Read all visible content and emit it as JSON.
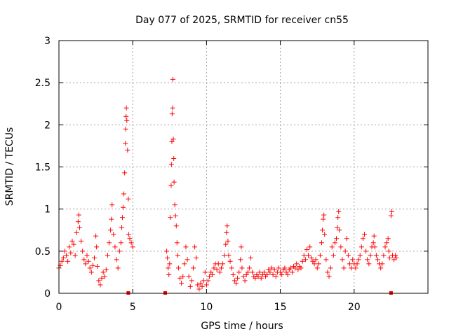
{
  "chart_data": {
    "type": "scatter",
    "title": "Day 077 of 2025, SRMTID for receiver cn55",
    "xlabel": "GPS time / hours",
    "ylabel": "SRMTID / TECUs",
    "xlim": [
      0,
      25
    ],
    "ylim": [
      0,
      3
    ],
    "x_ticks": [
      0,
      5,
      10,
      15,
      20
    ],
    "x_tick_labels": [
      "0",
      "5",
      "10",
      "15",
      "20"
    ],
    "y_ticks": [
      0,
      0.5,
      1,
      1.5,
      2,
      2.5,
      3
    ],
    "y_tick_labels": [
      "0",
      "0.5",
      "1",
      "1.5",
      "2",
      "2.5",
      "3"
    ],
    "grid": true,
    "marker": "plus",
    "series_color": "#ff0000",
    "series": [
      {
        "name": "SRMTID",
        "points": [
          [
            0.0,
            0.3
          ],
          [
            0.1,
            0.33
          ],
          [
            0.2,
            0.38
          ],
          [
            0.3,
            0.42
          ],
          [
            0.4,
            0.5
          ],
          [
            0.5,
            0.45
          ],
          [
            0.6,
            0.38
          ],
          [
            0.7,
            0.55
          ],
          [
            0.8,
            0.48
          ],
          [
            0.9,
            0.62
          ],
          [
            1.0,
            0.58
          ],
          [
            1.1,
            0.45
          ],
          [
            1.2,
            0.72
          ],
          [
            1.3,
            0.85
          ],
          [
            1.35,
            0.93
          ],
          [
            1.4,
            0.78
          ],
          [
            1.5,
            0.62
          ],
          [
            1.6,
            0.5
          ],
          [
            1.7,
            0.4
          ],
          [
            1.8,
            0.35
          ],
          [
            1.9,
            0.45
          ],
          [
            2.0,
            0.38
          ],
          [
            2.1,
            0.3
          ],
          [
            2.2,
            0.25
          ],
          [
            2.3,
            0.33
          ],
          [
            2.4,
            0.42
          ],
          [
            2.5,
            0.68
          ],
          [
            2.55,
            0.55
          ],
          [
            2.6,
            0.32
          ],
          [
            2.7,
            0.15
          ],
          [
            2.8,
            0.1
          ],
          [
            2.9,
            0.18
          ],
          [
            3.0,
            0.25
          ],
          [
            3.1,
            0.2
          ],
          [
            3.2,
            0.28
          ],
          [
            3.3,
            0.45
          ],
          [
            3.4,
            0.6
          ],
          [
            3.5,
            0.75
          ],
          [
            3.55,
            0.88
          ],
          [
            3.6,
            1.05
          ],
          [
            3.7,
            0.7
          ],
          [
            3.8,
            0.55
          ],
          [
            3.9,
            0.4
          ],
          [
            4.0,
            0.3
          ],
          [
            4.1,
            0.5
          ],
          [
            4.2,
            0.6
          ],
          [
            4.25,
            0.78
          ],
          [
            4.3,
            0.9
          ],
          [
            4.35,
            1.02
          ],
          [
            4.4,
            1.18
          ],
          [
            4.45,
            1.43
          ],
          [
            4.5,
            1.78
          ],
          [
            4.52,
            1.95
          ],
          [
            4.55,
            2.1
          ],
          [
            4.57,
            2.2
          ],
          [
            4.6,
            2.05
          ],
          [
            4.65,
            1.7
          ],
          [
            4.7,
            1.12
          ],
          [
            4.72,
            0.7
          ],
          [
            4.8,
            0.65
          ],
          [
            4.9,
            0.6
          ],
          [
            5.0,
            0.55
          ],
          [
            7.3,
            0.5
          ],
          [
            7.35,
            0.42
          ],
          [
            7.4,
            0.3
          ],
          [
            7.45,
            0.22
          ],
          [
            7.5,
            0.35
          ],
          [
            7.55,
            0.9
          ],
          [
            7.6,
            1.28
          ],
          [
            7.62,
            1.53
          ],
          [
            7.65,
            1.8
          ],
          [
            7.67,
            2.13
          ],
          [
            7.7,
            2.2
          ],
          [
            7.72,
            2.54
          ],
          [
            7.75,
            1.83
          ],
          [
            7.78,
            1.6
          ],
          [
            7.8,
            1.32
          ],
          [
            7.85,
            1.05
          ],
          [
            7.9,
            0.92
          ],
          [
            7.95,
            0.8
          ],
          [
            8.0,
            0.6
          ],
          [
            8.05,
            0.45
          ],
          [
            8.1,
            0.3
          ],
          [
            8.2,
            0.18
          ],
          [
            8.3,
            0.12
          ],
          [
            8.4,
            0.2
          ],
          [
            8.5,
            0.35
          ],
          [
            8.6,
            0.55
          ],
          [
            8.7,
            0.4
          ],
          [
            8.8,
            0.2
          ],
          [
            8.9,
            0.08
          ],
          [
            9.0,
            0.15
          ],
          [
            9.1,
            0.3
          ],
          [
            9.2,
            0.55
          ],
          [
            9.3,
            0.42
          ],
          [
            9.4,
            0.1
          ],
          [
            9.5,
            0.05
          ],
          [
            9.6,
            0.12
          ],
          [
            9.7,
            0.08
          ],
          [
            9.8,
            0.15
          ],
          [
            9.9,
            0.25
          ],
          [
            10.0,
            0.1
          ],
          [
            10.1,
            0.15
          ],
          [
            10.2,
            0.2
          ],
          [
            10.3,
            0.25
          ],
          [
            10.4,
            0.22
          ],
          [
            10.5,
            0.3
          ],
          [
            10.6,
            0.35
          ],
          [
            10.7,
            0.28
          ],
          [
            10.8,
            0.35
          ],
          [
            10.9,
            0.25
          ],
          [
            11.0,
            0.3
          ],
          [
            11.1,
            0.35
          ],
          [
            11.2,
            0.45
          ],
          [
            11.3,
            0.58
          ],
          [
            11.35,
            0.72
          ],
          [
            11.4,
            0.8
          ],
          [
            11.45,
            0.62
          ],
          [
            11.5,
            0.45
          ],
          [
            11.6,
            0.38
          ],
          [
            11.7,
            0.3
          ],
          [
            11.8,
            0.22
          ],
          [
            11.9,
            0.15
          ],
          [
            12.0,
            0.12
          ],
          [
            12.1,
            0.18
          ],
          [
            12.2,
            0.25
          ],
          [
            12.3,
            0.4
          ],
          [
            12.35,
            0.55
          ],
          [
            12.4,
            0.3
          ],
          [
            12.5,
            0.2
          ],
          [
            12.6,
            0.15
          ],
          [
            12.7,
            0.22
          ],
          [
            12.8,
            0.25
          ],
          [
            12.9,
            0.3
          ],
          [
            13.0,
            0.42
          ],
          [
            13.1,
            0.25
          ],
          [
            13.2,
            0.2
          ],
          [
            13.3,
            0.18
          ],
          [
            13.4,
            0.22
          ],
          [
            13.5,
            0.2
          ],
          [
            13.6,
            0.25
          ],
          [
            13.7,
            0.18
          ],
          [
            13.8,
            0.22
          ],
          [
            13.9,
            0.25
          ],
          [
            14.0,
            0.2
          ],
          [
            14.1,
            0.22
          ],
          [
            14.2,
            0.28
          ],
          [
            14.3,
            0.25
          ],
          [
            14.4,
            0.3
          ],
          [
            14.5,
            0.22
          ],
          [
            14.6,
            0.28
          ],
          [
            14.7,
            0.2
          ],
          [
            14.8,
            0.25
          ],
          [
            14.9,
            0.3
          ],
          [
            15.0,
            0.25
          ],
          [
            15.1,
            0.22
          ],
          [
            15.2,
            0.28
          ],
          [
            15.3,
            0.3
          ],
          [
            15.4,
            0.25
          ],
          [
            15.5,
            0.22
          ],
          [
            15.6,
            0.28
          ],
          [
            15.7,
            0.3
          ],
          [
            15.8,
            0.25
          ],
          [
            15.9,
            0.32
          ],
          [
            16.0,
            0.3
          ],
          [
            16.1,
            0.35
          ],
          [
            16.2,
            0.28
          ],
          [
            16.3,
            0.32
          ],
          [
            16.4,
            0.3
          ],
          [
            16.5,
            0.38
          ],
          [
            16.6,
            0.45
          ],
          [
            16.7,
            0.4
          ],
          [
            16.8,
            0.52
          ],
          [
            16.9,
            0.45
          ],
          [
            17.0,
            0.55
          ],
          [
            17.1,
            0.42
          ],
          [
            17.2,
            0.38
          ],
          [
            17.3,
            0.35
          ],
          [
            17.4,
            0.4
          ],
          [
            17.5,
            0.3
          ],
          [
            17.6,
            0.35
          ],
          [
            17.7,
            0.45
          ],
          [
            17.8,
            0.6
          ],
          [
            17.85,
            0.75
          ],
          [
            17.9,
            0.88
          ],
          [
            17.95,
            0.93
          ],
          [
            18.0,
            0.7
          ],
          [
            18.1,
            0.4
          ],
          [
            18.2,
            0.25
          ],
          [
            18.3,
            0.2
          ],
          [
            18.4,
            0.3
          ],
          [
            18.5,
            0.55
          ],
          [
            18.6,
            0.45
          ],
          [
            18.7,
            0.6
          ],
          [
            18.8,
            0.65
          ],
          [
            18.85,
            0.78
          ],
          [
            18.9,
            0.9
          ],
          [
            18.95,
            0.97
          ],
          [
            19.0,
            0.75
          ],
          [
            19.1,
            0.55
          ],
          [
            19.2,
            0.4
          ],
          [
            19.3,
            0.3
          ],
          [
            19.4,
            0.5
          ],
          [
            19.5,
            0.65
          ],
          [
            19.6,
            0.45
          ],
          [
            19.7,
            0.35
          ],
          [
            19.8,
            0.3
          ],
          [
            19.9,
            0.4
          ],
          [
            20.0,
            0.35
          ],
          [
            20.1,
            0.3
          ],
          [
            20.2,
            0.35
          ],
          [
            20.3,
            0.4
          ],
          [
            20.4,
            0.45
          ],
          [
            20.5,
            0.55
          ],
          [
            20.6,
            0.65
          ],
          [
            20.7,
            0.7
          ],
          [
            20.8,
            0.5
          ],
          [
            20.9,
            0.4
          ],
          [
            21.0,
            0.35
          ],
          [
            21.1,
            0.45
          ],
          [
            21.2,
            0.55
          ],
          [
            21.3,
            0.6
          ],
          [
            21.35,
            0.68
          ],
          [
            21.4,
            0.55
          ],
          [
            21.5,
            0.45
          ],
          [
            21.6,
            0.4
          ],
          [
            21.7,
            0.35
          ],
          [
            21.8,
            0.3
          ],
          [
            21.9,
            0.35
          ],
          [
            22.0,
            0.45
          ],
          [
            22.1,
            0.55
          ],
          [
            22.2,
            0.6
          ],
          [
            22.3,
            0.65
          ],
          [
            22.35,
            0.5
          ],
          [
            22.4,
            0.42
          ],
          [
            22.5,
            0.92
          ],
          [
            22.55,
            0.97
          ],
          [
            22.6,
            0.45
          ],
          [
            22.7,
            0.4
          ],
          [
            22.8,
            0.45
          ],
          [
            22.85,
            0.42
          ]
        ]
      }
    ],
    "baseline_markers": [
      4.7,
      7.2,
      22.5
    ]
  }
}
